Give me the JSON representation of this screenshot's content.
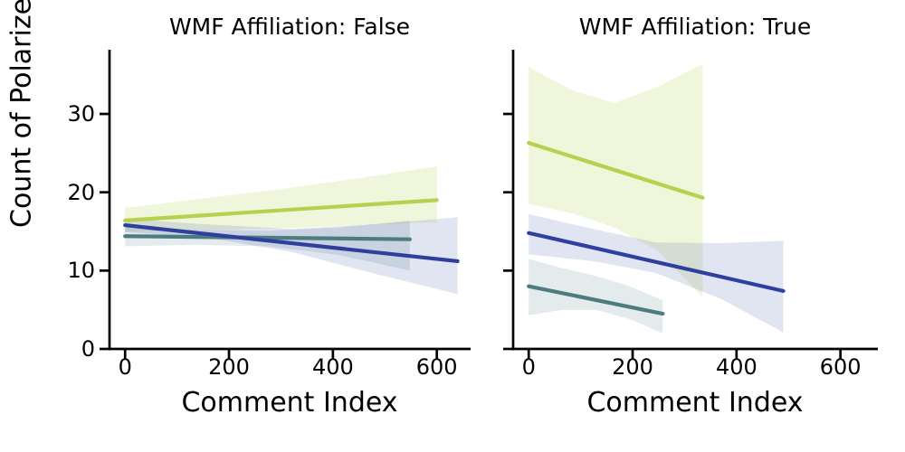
{
  "figure": {
    "ylabel": "Count of Polarized Words",
    "background": "#ffffff",
    "axis_color": "#000000"
  },
  "chart_data": [
    {
      "type": "line",
      "title": "WMF Affiliation: False",
      "xlabel": "Comment Index",
      "xticks": [
        "0",
        "200",
        "400",
        "600"
      ],
      "xtick_values": [
        0,
        200,
        400,
        600
      ],
      "yticks": [
        "0",
        "10",
        "20",
        "30"
      ],
      "ytick_values": [
        0,
        10,
        20,
        30
      ],
      "show_ytick_labels": true,
      "xlim": [
        -30,
        665
      ],
      "ylim": [
        0,
        38.2
      ],
      "grid": false,
      "legend": "none",
      "series": [
        {
          "name": "group-green",
          "color": "#b5d14e",
          "line": {
            "x": [
              0,
              600
            ],
            "y": [
              16.4,
              19.0
            ]
          },
          "band_opacity": 0.2,
          "band_top": [
            [
              0,
              18.0
            ],
            [
              150,
              19.2
            ],
            [
              300,
              20.4
            ],
            [
              450,
              21.8
            ],
            [
              600,
              23.3
            ]
          ],
          "band_bottom": [
            [
              600,
              16.2
            ],
            [
              450,
              15.8
            ],
            [
              300,
              15.4
            ],
            [
              150,
              15.2
            ],
            [
              0,
              15.0
            ]
          ]
        },
        {
          "name": "group-teal",
          "color": "#4d7c80",
          "line": {
            "x": [
              0,
              548
            ],
            "y": [
              14.4,
              14.0
            ]
          },
          "band_opacity": 0.15,
          "band_top": [
            [
              0,
              15.6
            ],
            [
              137,
              15.2
            ],
            [
              274,
              15.1
            ],
            [
              411,
              15.5
            ],
            [
              548,
              16.4
            ]
          ],
          "band_bottom": [
            [
              548,
              10.0
            ],
            [
              411,
              12.0
            ],
            [
              274,
              13.1
            ],
            [
              137,
              13.3
            ],
            [
              0,
              13.1
            ]
          ]
        },
        {
          "name": "group-blue",
          "color": "#2e3f9e",
          "line": {
            "x": [
              0,
              640
            ],
            "y": [
              15.8,
              11.2
            ]
          },
          "band_opacity": 0.14,
          "band_top": [
            [
              0,
              16.6
            ],
            [
              160,
              15.9
            ],
            [
              320,
              15.3
            ],
            [
              480,
              15.9
            ],
            [
              640,
              16.8
            ]
          ],
          "band_bottom": [
            [
              640,
              7.0
            ],
            [
              480,
              9.6
            ],
            [
              320,
              12.4
            ],
            [
              160,
              14.2
            ],
            [
              0,
              14.9
            ]
          ]
        }
      ]
    },
    {
      "type": "line",
      "title": "WMF Affiliation: True",
      "xlabel": "Comment Index",
      "xticks": [
        "0",
        "200",
        "400",
        "600"
      ],
      "xtick_values": [
        0,
        200,
        400,
        600
      ],
      "yticks": [
        "0",
        "10",
        "20",
        "30"
      ],
      "ytick_values": [
        0,
        10,
        20,
        30
      ],
      "show_ytick_labels": false,
      "xlim": [
        -30,
        672
      ],
      "ylim": [
        0,
        38.2
      ],
      "grid": false,
      "legend": "none",
      "series": [
        {
          "name": "group-green",
          "color": "#b5d14e",
          "line": {
            "x": [
              0,
              335
            ],
            "y": [
              26.3,
              19.3
            ]
          },
          "band_opacity": 0.2,
          "band_top": [
            [
              0,
              36.0
            ],
            [
              85,
              33.0
            ],
            [
              165,
              31.4
            ],
            [
              250,
              33.5
            ],
            [
              335,
              36.4
            ]
          ],
          "band_bottom": [
            [
              335,
              6.6
            ],
            [
              250,
              12.5
            ],
            [
              165,
              15.5
            ],
            [
              85,
              17.3
            ],
            [
              0,
              18.5
            ]
          ]
        },
        {
          "name": "group-teal",
          "color": "#4d7c80",
          "line": {
            "x": [
              0,
              258
            ],
            "y": [
              8.0,
              4.5
            ]
          },
          "band_opacity": 0.15,
          "band_top": [
            [
              0,
              11.5
            ],
            [
              65,
              10.3
            ],
            [
              130,
              9.3
            ],
            [
              195,
              8.0
            ],
            [
              258,
              6.2
            ]
          ],
          "band_bottom": [
            [
              258,
              2.0
            ],
            [
              195,
              3.8
            ],
            [
              130,
              5.0
            ],
            [
              65,
              5.0
            ],
            [
              0,
              4.3
            ]
          ]
        },
        {
          "name": "group-blue",
          "color": "#2e3f9e",
          "line": {
            "x": [
              0,
              490
            ],
            "y": [
              14.8,
              7.4
            ]
          },
          "band_opacity": 0.14,
          "band_top": [
            [
              0,
              17.2
            ],
            [
              125,
              15.3
            ],
            [
              245,
              13.6
            ],
            [
              370,
              13.5
            ],
            [
              490,
              13.8
            ]
          ],
          "band_bottom": [
            [
              490,
              2.1
            ],
            [
              370,
              6.4
            ],
            [
              245,
              9.7
            ],
            [
              125,
              11.2
            ],
            [
              0,
              12.1
            ]
          ]
        }
      ]
    }
  ]
}
